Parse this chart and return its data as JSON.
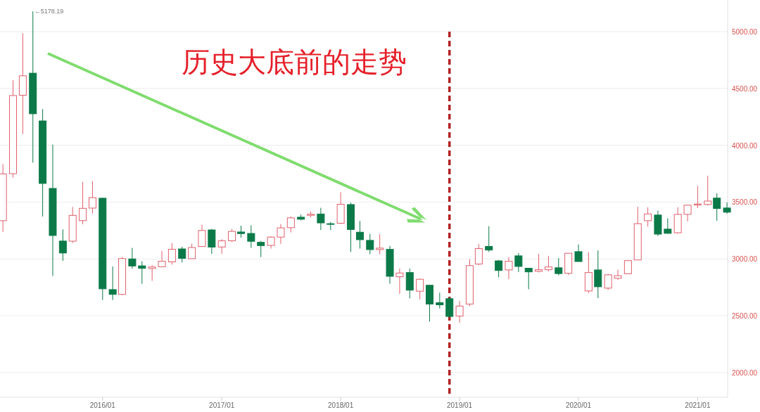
{
  "chart_data": {
    "type": "candlestick",
    "title": "历史大底前的走势",
    "x": [
      "2015-03",
      "2015-04",
      "2015-05",
      "2015-06",
      "2015-07",
      "2015-08",
      "2015-09",
      "2015-10",
      "2015-11",
      "2015-12",
      "2016-01",
      "2016-02",
      "2016-03",
      "2016-04",
      "2016-05",
      "2016-06",
      "2016-07",
      "2016-08",
      "2016-09",
      "2016-10",
      "2016-11",
      "2016-12",
      "2017-01",
      "2017-02",
      "2017-03",
      "2017-04",
      "2017-05",
      "2017-06",
      "2017-07",
      "2017-08",
      "2017-09",
      "2017-10",
      "2017-11",
      "2017-12",
      "2018-01",
      "2018-02",
      "2018-03",
      "2018-04",
      "2018-05",
      "2018-06",
      "2018-07",
      "2018-08",
      "2018-09",
      "2018-10",
      "2018-11",
      "2018-12",
      "2019-01",
      "2019-02",
      "2019-03",
      "2019-04",
      "2019-05",
      "2019-06",
      "2019-07",
      "2019-08",
      "2019-09",
      "2019-10",
      "2019-11",
      "2019-12",
      "2020-01",
      "2020-02",
      "2020-03",
      "2020-04",
      "2020-05",
      "2020-06",
      "2020-07",
      "2020-08",
      "2020-09",
      "2020-10",
      "2020-11",
      "2020-12",
      "2021-01",
      "2021-02",
      "2021-03",
      "2021-04"
    ],
    "ohlc": [
      [
        3336,
        3835,
        3238,
        3748
      ],
      [
        3750,
        4572,
        3716,
        4437
      ],
      [
        4440,
        4986,
        4099,
        4611
      ],
      [
        4634,
        5178.19,
        3847,
        4277
      ],
      [
        4214,
        4318,
        3373,
        3664
      ],
      [
        3620,
        4006,
        2850,
        3206
      ],
      [
        3157,
        3260,
        2983,
        3052
      ],
      [
        3156,
        3457,
        3140,
        3383
      ],
      [
        3337,
        3678,
        3305,
        3445
      ],
      [
        3447,
        3684,
        3399,
        3539
      ],
      [
        3534,
        3538,
        2638,
        2737
      ],
      [
        2730,
        2933,
        2638,
        2688
      ],
      [
        2688,
        3018,
        2681,
        3003
      ],
      [
        3000,
        3097,
        2914,
        2938
      ],
      [
        2939,
        2979,
        2781,
        2917
      ],
      [
        2916,
        2945,
        2807,
        2929
      ],
      [
        2931,
        3070,
        2929,
        2979
      ],
      [
        2974,
        3140,
        2950,
        3085
      ],
      [
        3088,
        3107,
        2969,
        3005
      ],
      [
        3002,
        3134,
        3002,
        3100
      ],
      [
        3109,
        3301,
        3109,
        3250
      ],
      [
        3255,
        3264,
        3044,
        3104
      ],
      [
        3105,
        3174,
        3044,
        3159
      ],
      [
        3160,
        3264,
        3149,
        3242
      ],
      [
        3237,
        3292,
        3187,
        3223
      ],
      [
        3224,
        3295,
        3097,
        3155
      ],
      [
        3146,
        3158,
        3016,
        3117
      ],
      [
        3119,
        3199,
        3091,
        3192
      ],
      [
        3192,
        3307,
        3133,
        3273
      ],
      [
        3275,
        3374,
        3233,
        3361
      ],
      [
        3367,
        3391,
        3339,
        3349
      ],
      [
        3384,
        3418,
        3364,
        3393
      ],
      [
        3395,
        3450,
        3254,
        3317
      ],
      [
        3310,
        3325,
        3254,
        3307
      ],
      [
        3314,
        3587,
        3308,
        3481
      ],
      [
        3478,
        3495,
        3062,
        3259
      ],
      [
        3235,
        3334,
        3091,
        3169
      ],
      [
        3163,
        3220,
        3041,
        3082
      ],
      [
        3082,
        3219,
        3041,
        3095
      ],
      [
        3084,
        3114,
        2782,
        2847
      ],
      [
        2843,
        2915,
        2691,
        2876
      ],
      [
        2880,
        2915,
        2653,
        2725
      ],
      [
        2716,
        2827,
        2644,
        2821
      ],
      [
        2768,
        2771,
        2449,
        2603
      ],
      [
        2615,
        2703,
        2563,
        2596
      ],
      [
        2650,
        2666,
        2483,
        2494
      ],
      [
        2497,
        2630,
        2440,
        2585
      ],
      [
        2603,
        2997,
        2584,
        2941
      ],
      [
        2955,
        3130,
        2946,
        3091
      ],
      [
        3110,
        3288,
        3062,
        3078
      ],
      [
        2983,
        2990,
        2838,
        2898
      ],
      [
        2903,
        3016,
        2822,
        2979
      ],
      [
        3027,
        3052,
        2884,
        2934
      ],
      [
        2918,
        2920,
        2733,
        2886
      ],
      [
        2891,
        3045,
        2881,
        2905
      ],
      [
        2905,
        3027,
        2891,
        2929
      ],
      [
        2922,
        3008,
        2856,
        2871
      ],
      [
        2873,
        3052,
        2857,
        3050
      ],
      [
        3064,
        3127,
        2976,
        2977
      ],
      [
        2718,
        3058,
        2700,
        2880
      ],
      [
        2903,
        3075,
        2655,
        2755
      ],
      [
        2743,
        2869,
        2727,
        2860
      ],
      [
        2830,
        2905,
        2815,
        2852
      ],
      [
        2870,
        2990,
        2865,
        2985
      ],
      [
        2991,
        3459,
        2991,
        3310
      ],
      [
        3336,
        3454,
        3284,
        3396
      ],
      [
        3386,
        3425,
        3202,
        3218
      ],
      [
        3262,
        3358,
        3222,
        3225
      ],
      [
        3230,
        3455,
        3222,
        3392
      ],
      [
        3392,
        3474,
        3330,
        3473
      ],
      [
        3475,
        3642,
        3447,
        3483
      ],
      [
        3479,
        3732,
        3470,
        3509
      ],
      [
        3535,
        3578,
        3336,
        3444
      ],
      [
        3448,
        3497,
        3398,
        3411
      ]
    ],
    "xlim": [
      "2015-02-20",
      "2021-04-03"
    ],
    "xticks": [
      {
        "value": "2016-01",
        "label": "2016/01"
      },
      {
        "value": "2017-01",
        "label": "2017/01"
      },
      {
        "value": "2018-01",
        "label": "2018/01"
      },
      {
        "value": "2019-01",
        "label": "2019/01"
      },
      {
        "value": "2020-01",
        "label": "2020/01"
      },
      {
        "value": "2021-01",
        "label": "2021/01"
      }
    ],
    "ylim": [
      1783,
      5278
    ],
    "yticks": [
      {
        "value": 2000,
        "label": "2000.00"
      },
      {
        "value": 2500,
        "label": "2500.00"
      },
      {
        "value": 3000,
        "label": "3000.00"
      },
      {
        "value": 3500,
        "label": "3500.00"
      },
      {
        "value": 4000,
        "label": "4000.00"
      },
      {
        "value": 4500,
        "label": "4500.00"
      },
      {
        "value": 5000,
        "label": "5000.00"
      }
    ],
    "grid": "y",
    "annotations": [
      {
        "text": "←5178.19",
        "x": "2015-06",
        "y": 5178.19
      }
    ],
    "ref_lines": [
      {
        "axis": "x",
        "value": "2018-12",
        "color": "#b22222",
        "line_style": "dashed"
      }
    ]
  }
}
